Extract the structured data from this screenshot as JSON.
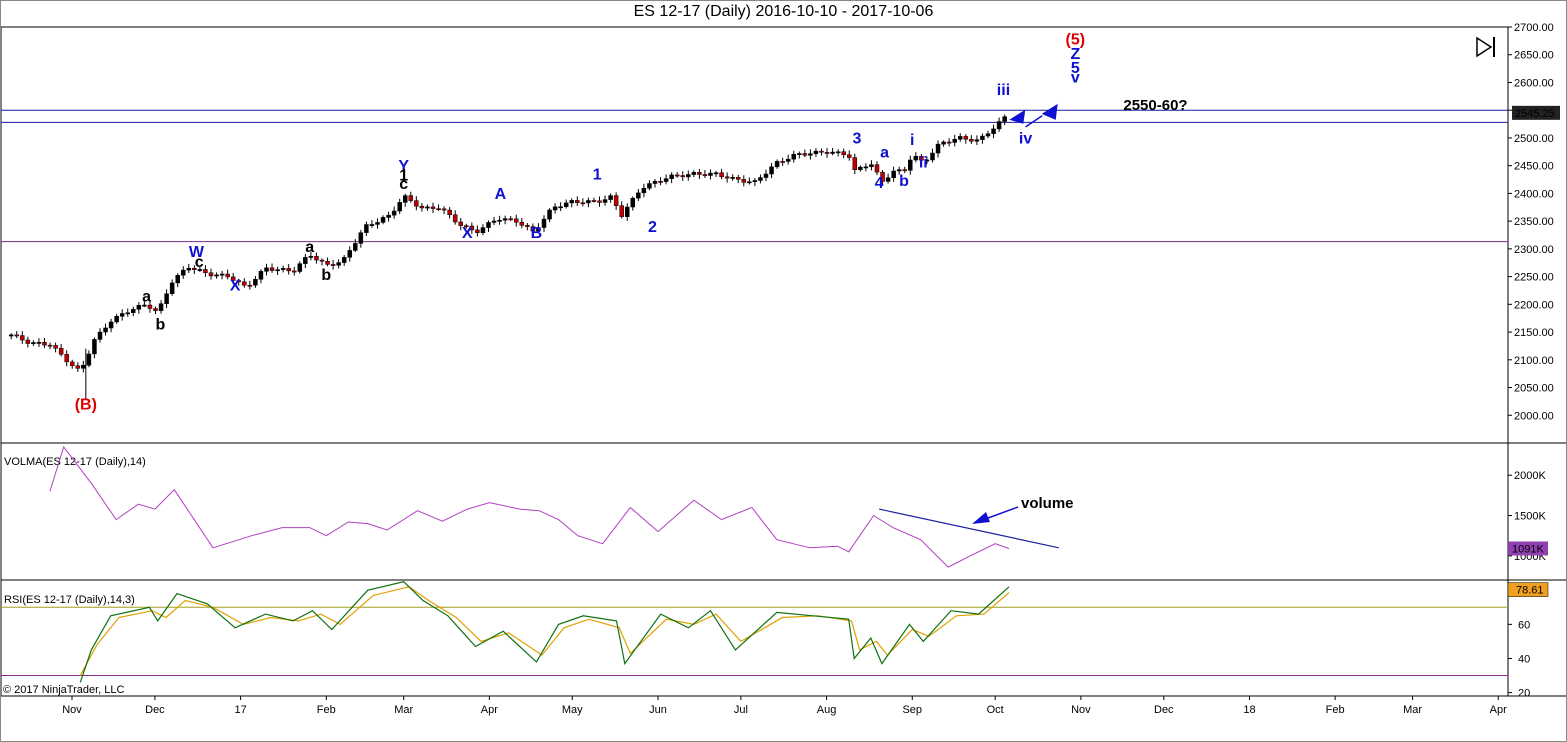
{
  "window": {
    "title": "ES 12-17 (Daily)  2016-10-10 - 2017-10-06",
    "copyright": "© 2017 NinjaTrader, LLC"
  },
  "chart_data": [
    {
      "type": "candlestick",
      "panel": "price",
      "title": "ES 12-17 (Daily)  2016-10-10 - 2017-10-06",
      "ylim": [
        1950,
        2700
      ],
      "y_ticks": [
        "2700.00",
        "2650.00",
        "2600.00",
        "2550.00",
        "2500.00",
        "2450.00",
        "2400.00",
        "2350.00",
        "2300.00",
        "2250.00",
        "2200.00",
        "2150.00",
        "2100.00",
        "2050.00",
        "2000.00"
      ],
      "last_price": "2545.25",
      "horizontal_lines": [
        2550,
        2528,
        2313
      ],
      "close_path": [
        [
          "2016-10-10",
          2145
        ],
        [
          "2016-10-17",
          2130
        ],
        [
          "2016-10-24",
          2128
        ],
        [
          "2016-11-01",
          2090
        ],
        [
          "2016-11-04",
          2078
        ],
        [
          "2016-11-09",
          2135
        ],
        [
          "2016-11-15",
          2170
        ],
        [
          "2016-11-22",
          2190
        ],
        [
          "2016-11-28",
          2200
        ],
        [
          "2016-12-02",
          2185
        ],
        [
          "2016-12-07",
          2240
        ],
        [
          "2016-12-13",
          2268
        ],
        [
          "2016-12-20",
          2255
        ],
        [
          "2016-12-28",
          2250
        ],
        [
          "2017-01-03",
          2230
        ],
        [
          "2017-01-10",
          2265
        ],
        [
          "2017-01-20",
          2260
        ],
        [
          "2017-01-26",
          2290
        ],
        [
          "2017-02-01",
          2270
        ],
        [
          "2017-02-07",
          2278
        ],
        [
          "2017-02-15",
          2340
        ],
        [
          "2017-02-24",
          2360
        ],
        [
          "2017-03-01",
          2395
        ],
        [
          "2017-03-08",
          2372
        ],
        [
          "2017-03-14",
          2375
        ],
        [
          "2017-03-21",
          2345
        ],
        [
          "2017-03-27",
          2330
        ],
        [
          "2017-04-04",
          2355
        ],
        [
          "2017-04-11",
          2350
        ],
        [
          "2017-04-17",
          2330
        ],
        [
          "2017-04-24",
          2375
        ],
        [
          "2017-05-01",
          2385
        ],
        [
          "2017-05-10",
          2385
        ],
        [
          "2017-05-16",
          2395
        ],
        [
          "2017-05-18",
          2355
        ],
        [
          "2017-05-26",
          2410
        ],
        [
          "2017-06-05",
          2430
        ],
        [
          "2017-06-14",
          2435
        ],
        [
          "2017-06-22",
          2435
        ],
        [
          "2017-06-29",
          2425
        ],
        [
          "2017-07-06",
          2420
        ],
        [
          "2017-07-14",
          2455
        ],
        [
          "2017-07-21",
          2470
        ],
        [
          "2017-08-01",
          2475
        ],
        [
          "2017-08-09",
          2470
        ],
        [
          "2017-08-11",
          2440
        ],
        [
          "2017-08-17",
          2455
        ],
        [
          "2017-08-21",
          2420
        ],
        [
          "2017-08-25",
          2440
        ],
        [
          "2017-08-29",
          2440
        ],
        [
          "2017-09-01",
          2470
        ],
        [
          "2017-09-05",
          2455
        ],
        [
          "2017-09-11",
          2490
        ],
        [
          "2017-09-18",
          2500
        ],
        [
          "2017-09-25",
          2495
        ],
        [
          "2017-10-02",
          2525
        ],
        [
          "2017-10-06",
          2545
        ]
      ],
      "annotations": [
        {
          "text": "(B)",
          "x": "2016-11-06",
          "y": 2010,
          "color": "#e00000"
        },
        {
          "text": "a",
          "x": "2016-11-28",
          "y": 2205,
          "color": "#000000"
        },
        {
          "text": "b",
          "x": "2016-12-03",
          "y": 2155,
          "color": "#000000"
        },
        {
          "text": "W",
          "x": "2016-12-16",
          "y": 2285,
          "color": "#1010d0"
        },
        {
          "text": "c",
          "x": "2016-12-17",
          "y": 2267,
          "color": "#000000"
        },
        {
          "text": "X",
          "x": "2016-12-30",
          "y": 2225,
          "color": "#1010d0"
        },
        {
          "text": "a",
          "x": "2017-01-26",
          "y": 2294,
          "color": "#000000"
        },
        {
          "text": "b",
          "x": "2017-02-01",
          "y": 2244,
          "color": "#000000"
        },
        {
          "text": "Y",
          "x": "2017-03-01",
          "y": 2440,
          "color": "#1010d0"
        },
        {
          "text": "1",
          "x": "2017-03-01",
          "y": 2423,
          "color": "#000000"
        },
        {
          "text": "c",
          "x": "2017-03-01",
          "y": 2408,
          "color": "#000000"
        },
        {
          "text": "X",
          "x": "2017-03-24",
          "y": 2320,
          "color": "#1010d0"
        },
        {
          "text": "A",
          "x": "2017-04-05",
          "y": 2390,
          "color": "#1010d0"
        },
        {
          "text": "B",
          "x": "2017-04-18",
          "y": 2320,
          "color": "#1010d0"
        },
        {
          "text": "1",
          "x": "2017-05-10",
          "y": 2425,
          "color": "#1010d0"
        },
        {
          "text": "2",
          "x": "2017-05-30",
          "y": 2330,
          "color": "#1010d0"
        },
        {
          "text": "3",
          "x": "2017-08-12",
          "y": 2490,
          "color": "#1010d0"
        },
        {
          "text": "a",
          "x": "2017-08-22",
          "y": 2465,
          "color": "#1010d0"
        },
        {
          "text": "4",
          "x": "2017-08-20",
          "y": 2410,
          "color": "#1010d0"
        },
        {
          "text": "b",
          "x": "2017-08-29",
          "y": 2413,
          "color": "#1010d0"
        },
        {
          "text": "i",
          "x": "2017-09-01",
          "y": 2487,
          "color": "#1010d0"
        },
        {
          "text": "ii",
          "x": "2017-09-05",
          "y": 2447,
          "color": "#1010d0"
        },
        {
          "text": "iii",
          "x": "2017-10-04",
          "y": 2577,
          "color": "#1010d0"
        },
        {
          "text": "iv",
          "x": "2017-10-12",
          "y": 2490,
          "color": "#1010d0"
        },
        {
          "text": "(5)",
          "x": "2017-10-30",
          "y": 2668,
          "color": "#e00000"
        },
        {
          "text": "Z",
          "x": "2017-10-30",
          "y": 2642,
          "color": "#1010d0"
        },
        {
          "text": "5",
          "x": "2017-10-30",
          "y": 2617,
          "color": "#1010d0"
        },
        {
          "text": "v",
          "x": "2017-10-30",
          "y": 2600,
          "color": "#1010d0"
        },
        {
          "text": "2550-60?",
          "x": "2017-11-28",
          "y": 2550,
          "color": "#000000"
        }
      ]
    },
    {
      "type": "line",
      "panel": "volume",
      "label": "VOLMA(ES 12-17 (Daily),14)",
      "ylim": [
        700000,
        2400000
      ],
      "y_ticks": [
        "2000K",
        "1500K",
        "1000K"
      ],
      "last_value": "1091K",
      "annotation": "volume",
      "series": [
        {
          "name": "VOLMA",
          "color": "#b040c0",
          "points": [
            [
              "2016-10-24",
              1800000
            ],
            [
              "2016-10-29",
              2350000
            ],
            [
              "2016-11-08",
              1900000
            ],
            [
              "2016-11-17",
              1450000
            ],
            [
              "2016-11-25",
              1640000
            ],
            [
              "2016-12-01",
              1580000
            ],
            [
              "2016-12-08",
              1820000
            ],
            [
              "2016-12-22",
              1100000
            ],
            [
              "2017-01-05",
              1250000
            ],
            [
              "2017-01-16",
              1350000
            ],
            [
              "2017-01-26",
              1350000
            ],
            [
              "2017-02-01",
              1250000
            ],
            [
              "2017-02-09",
              1420000
            ],
            [
              "2017-02-16",
              1400000
            ],
            [
              "2017-02-23",
              1320000
            ],
            [
              "2017-03-06",
              1560000
            ],
            [
              "2017-03-15",
              1430000
            ],
            [
              "2017-03-24",
              1580000
            ],
            [
              "2017-04-01",
              1660000
            ],
            [
              "2017-04-12",
              1580000
            ],
            [
              "2017-04-19",
              1560000
            ],
            [
              "2017-04-26",
              1450000
            ],
            [
              "2017-05-03",
              1250000
            ],
            [
              "2017-05-12",
              1150000
            ],
            [
              "2017-05-22",
              1600000
            ],
            [
              "2017-06-01",
              1300000
            ],
            [
              "2017-06-14",
              1690000
            ],
            [
              "2017-06-24",
              1450000
            ],
            [
              "2017-07-05",
              1600000
            ],
            [
              "2017-07-14",
              1200000
            ],
            [
              "2017-07-26",
              1100000
            ],
            [
              "2017-08-05",
              1120000
            ],
            [
              "2017-08-09",
              1050000
            ],
            [
              "2017-08-18",
              1500000
            ],
            [
              "2017-08-25",
              1350000
            ],
            [
              "2017-09-04",
              1200000
            ],
            [
              "2017-09-14",
              860000
            ],
            [
              "2017-09-22",
              1000000
            ],
            [
              "2017-10-01",
              1150000
            ],
            [
              "2017-10-06",
              1091000
            ]
          ]
        },
        {
          "name": "trendline",
          "color": "#2020a0",
          "points": [
            [
              "2017-08-20",
              1580000
            ],
            [
              "2017-10-24",
              1100000
            ]
          ]
        }
      ]
    },
    {
      "type": "line",
      "panel": "rsi",
      "label": "RSI(ES 12-17 (Daily),14,3)",
      "ylim": [
        18,
        86
      ],
      "y_ticks": [
        "60",
        "40",
        "20"
      ],
      "last_value": "78.61",
      "level_lines": [
        70,
        30
      ],
      "series": [
        {
          "name": "RSI",
          "color": "#107010",
          "points": [
            [
              "2016-11-04",
              26
            ],
            [
              "2016-11-08",
              45
            ],
            [
              "2016-11-15",
              65
            ],
            [
              "2016-11-29",
              70
            ],
            [
              "2016-12-02",
              62
            ],
            [
              "2016-12-09",
              78
            ],
            [
              "2016-12-20",
              72
            ],
            [
              "2016-12-30",
              58
            ],
            [
              "2017-01-10",
              66
            ],
            [
              "2017-01-20",
              62
            ],
            [
              "2017-01-27",
              68
            ],
            [
              "2017-02-03",
              57
            ],
            [
              "2017-02-16",
              80
            ],
            [
              "2017-03-01",
              85
            ],
            [
              "2017-03-08",
              74
            ],
            [
              "2017-03-17",
              65
            ],
            [
              "2017-03-27",
              47
            ],
            [
              "2017-04-06",
              56
            ],
            [
              "2017-04-18",
              38
            ],
            [
              "2017-04-26",
              60
            ],
            [
              "2017-05-05",
              65
            ],
            [
              "2017-05-17",
              62
            ],
            [
              "2017-05-20",
              37
            ],
            [
              "2017-06-02",
              66
            ],
            [
              "2017-06-12",
              58
            ],
            [
              "2017-06-20",
              68
            ],
            [
              "2017-06-29",
              45
            ],
            [
              "2017-07-14",
              67
            ],
            [
              "2017-07-27",
              65
            ],
            [
              "2017-08-09",
              63
            ],
            [
              "2017-08-11",
              40
            ],
            [
              "2017-08-17",
              52
            ],
            [
              "2017-08-21",
              37
            ],
            [
              "2017-08-31",
              60
            ],
            [
              "2017-09-05",
              50
            ],
            [
              "2017-09-15",
              68
            ],
            [
              "2017-09-25",
              66
            ],
            [
              "2017-10-06",
              82
            ]
          ]
        },
        {
          "name": "signal",
          "color": "#e0a000",
          "points": [
            [
              "2016-11-04",
              30
            ],
            [
              "2016-11-10",
              48
            ],
            [
              "2016-11-18",
              64
            ],
            [
              "2016-11-30",
              68
            ],
            [
              "2016-12-05",
              64
            ],
            [
              "2016-12-12",
              74
            ],
            [
              "2016-12-22",
              70
            ],
            [
              "2017-01-02",
              60
            ],
            [
              "2017-01-12",
              64
            ],
            [
              "2017-01-22",
              62
            ],
            [
              "2017-01-30",
              66
            ],
            [
              "2017-02-06",
              60
            ],
            [
              "2017-02-18",
              77
            ],
            [
              "2017-03-03",
              82
            ],
            [
              "2017-03-10",
              74
            ],
            [
              "2017-03-20",
              64
            ],
            [
              "2017-03-29",
              50
            ],
            [
              "2017-04-08",
              55
            ],
            [
              "2017-04-20",
              42
            ],
            [
              "2017-04-28",
              58
            ],
            [
              "2017-05-07",
              63
            ],
            [
              "2017-05-18",
              58
            ],
            [
              "2017-05-22",
              43
            ],
            [
              "2017-06-04",
              63
            ],
            [
              "2017-06-14",
              60
            ],
            [
              "2017-06-22",
              66
            ],
            [
              "2017-07-01",
              50
            ],
            [
              "2017-07-16",
              64
            ],
            [
              "2017-07-29",
              65
            ],
            [
              "2017-08-10",
              62
            ],
            [
              "2017-08-13",
              45
            ],
            [
              "2017-08-19",
              50
            ],
            [
              "2017-08-23",
              42
            ],
            [
              "2017-09-01",
              57
            ],
            [
              "2017-09-07",
              53
            ],
            [
              "2017-09-17",
              65
            ],
            [
              "2017-09-27",
              66
            ],
            [
              "2017-10-06",
              78.61
            ]
          ]
        }
      ]
    }
  ],
  "x_axis": {
    "ticks": [
      {
        "label": "Nov",
        "date": "2016-11-01"
      },
      {
        "label": "Dec",
        "date": "2016-12-01"
      },
      {
        "label": "17",
        "date": "2017-01-01"
      },
      {
        "label": "Feb",
        "date": "2017-02-01"
      },
      {
        "label": "Mar",
        "date": "2017-03-01"
      },
      {
        "label": "Apr",
        "date": "2017-04-01"
      },
      {
        "label": "May",
        "date": "2017-05-01"
      },
      {
        "label": "Jun",
        "date": "2017-06-01"
      },
      {
        "label": "Jul",
        "date": "2017-07-01"
      },
      {
        "label": "Aug",
        "date": "2017-08-01"
      },
      {
        "label": "Sep",
        "date": "2017-09-01"
      },
      {
        "label": "Oct",
        "date": "2017-10-01"
      },
      {
        "label": "Nov",
        "date": "2017-11-01"
      },
      {
        "label": "Dec",
        "date": "2017-12-01"
      },
      {
        "label": "18",
        "date": "2018-01-01"
      },
      {
        "label": "Feb",
        "date": "2018-02-01"
      },
      {
        "label": "Mar",
        "date": "2018-03-01"
      },
      {
        "label": "Apr",
        "date": "2018-04-01"
      }
    ]
  }
}
